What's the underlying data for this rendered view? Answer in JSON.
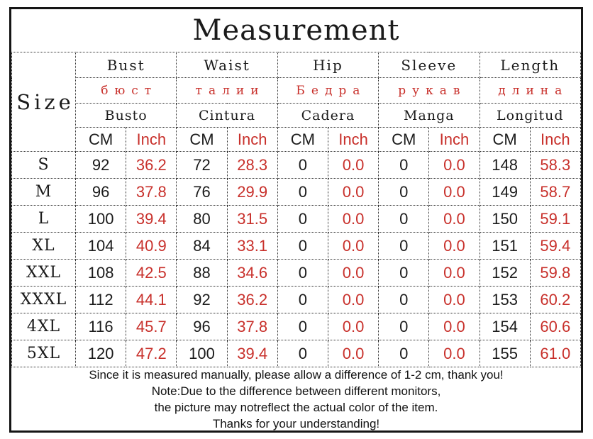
{
  "title": "Measurement",
  "colors": {
    "red_text": "#c8302b",
    "text_black": "#1b1b1b",
    "border_black": "#151515"
  },
  "table": {
    "size_header": "Size",
    "units": {
      "cm": "CM",
      "inch": "Inch"
    },
    "columns": [
      {
        "en": "Bust",
        "ru": "бюст",
        "es": "Busto"
      },
      {
        "en": "Waist",
        "ru": "талии",
        "es": "Cintura"
      },
      {
        "en": "Hip",
        "ru": "Бедра",
        "es": "Cadera"
      },
      {
        "en": "Sleeve",
        "ru": "рукав",
        "es": "Manga"
      },
      {
        "en": "Length",
        "ru": "длина",
        "es": "Longitud"
      }
    ],
    "rows": [
      {
        "size": "S",
        "values": [
          "92",
          "36.2",
          "72",
          "28.3",
          "0",
          "0.0",
          "0",
          "0.0",
          "148",
          "58.3"
        ]
      },
      {
        "size": "M",
        "values": [
          "96",
          "37.8",
          "76",
          "29.9",
          "0",
          "0.0",
          "0",
          "0.0",
          "149",
          "58.7"
        ]
      },
      {
        "size": "L",
        "values": [
          "100",
          "39.4",
          "80",
          "31.5",
          "0",
          "0.0",
          "0",
          "0.0",
          "150",
          "59.1"
        ]
      },
      {
        "size": "XL",
        "values": [
          "104",
          "40.9",
          "84",
          "33.1",
          "0",
          "0.0",
          "0",
          "0.0",
          "151",
          "59.4"
        ]
      },
      {
        "size": "XXL",
        "values": [
          "108",
          "42.5",
          "88",
          "34.6",
          "0",
          "0.0",
          "0",
          "0.0",
          "152",
          "59.8"
        ]
      },
      {
        "size": "XXXL",
        "values": [
          "112",
          "44.1",
          "92",
          "36.2",
          "0",
          "0.0",
          "0",
          "0.0",
          "153",
          "60.2"
        ]
      },
      {
        "size": "4XL",
        "values": [
          "116",
          "45.7",
          "96",
          "37.8",
          "0",
          "0.0",
          "0",
          "0.0",
          "154",
          "60.6"
        ]
      },
      {
        "size": "5XL",
        "values": [
          "120",
          "47.2",
          "100",
          "39.4",
          "0",
          "0.0",
          "0",
          "0.0",
          "155",
          "61.0"
        ]
      }
    ]
  },
  "notes": [
    "Since it is measured manually, please allow a difference of 1-2 cm, thank you!",
    "Note:Due to the difference between different monitors,",
    "the picture may notreflect the actual color of the item.",
    "Thanks for your understanding!"
  ]
}
